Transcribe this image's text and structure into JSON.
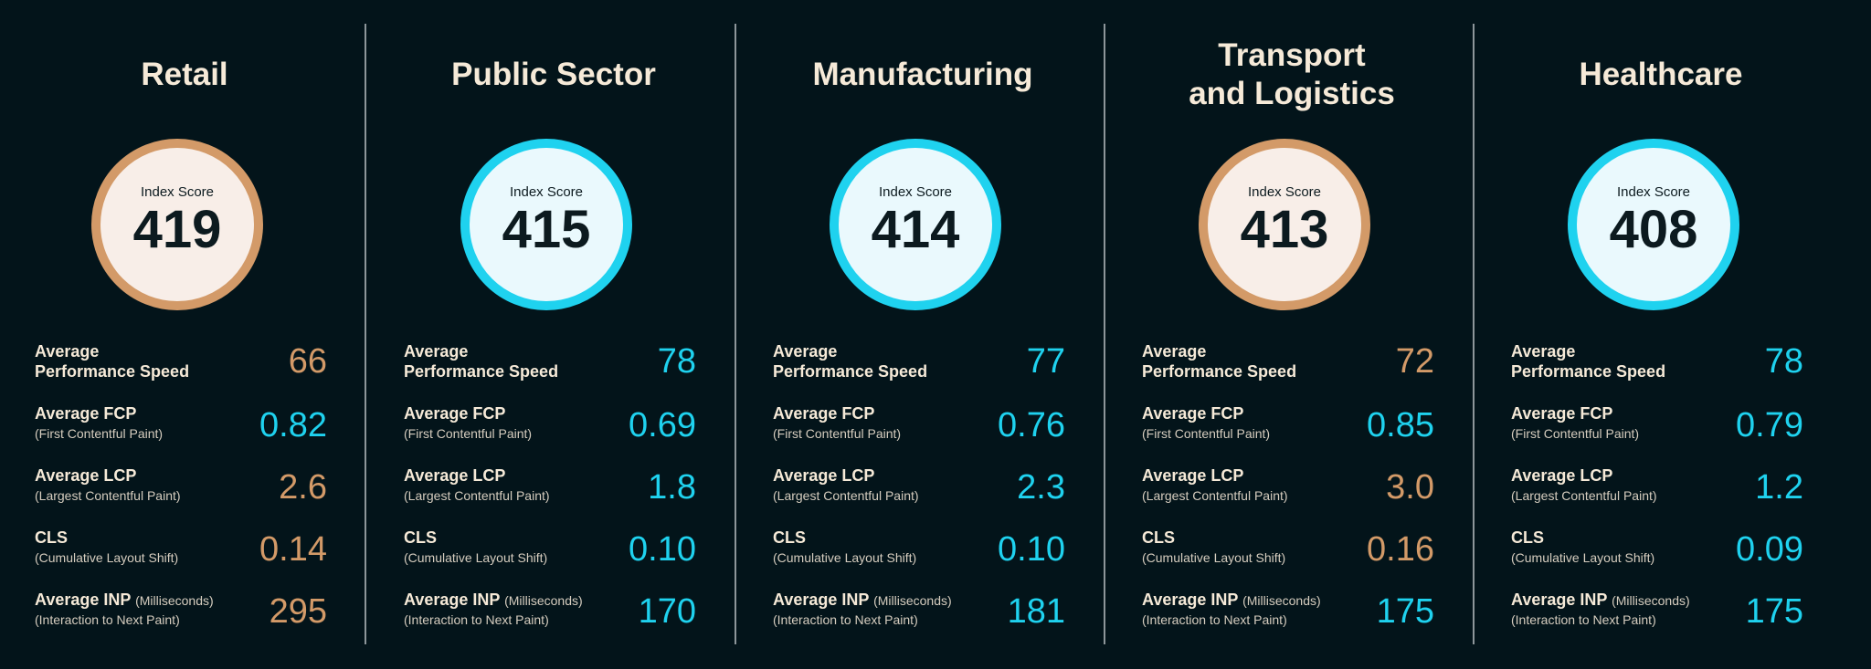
{
  "colors": {
    "background": "#03141a",
    "title": "#f6ead8",
    "accent_orange": "#d39a68",
    "accent_cyan": "#1fd2ef",
    "circle_fill_orange": "#f8eee8",
    "circle_fill_cyan": "#eaf9fd"
  },
  "labels": {
    "index_score": "Index Score",
    "avg_performance": "Average\nPerformance Speed",
    "avg_fcp": "Average FCP",
    "avg_fcp_sub": "(First Contentful Paint)",
    "avg_lcp": "Average LCP",
    "avg_lcp_sub": "(Largest Contentful Paint)",
    "cls": "CLS",
    "cls_sub": "(Cumulative Layout Shift)",
    "avg_inp": "Average INP",
    "avg_inp_suffix": "(Milliseconds)",
    "avg_inp_sub": "(Interaction to Next Paint)"
  },
  "panels": [
    {
      "title": "Retail",
      "score": "419",
      "ring": "orange",
      "metrics": [
        {
          "value": "66",
          "color": "orange"
        },
        {
          "value": "0.82",
          "color": "cyan"
        },
        {
          "value": "2.6",
          "color": "orange"
        },
        {
          "value": "0.14",
          "color": "orange"
        },
        {
          "value": "295",
          "color": "orange"
        }
      ]
    },
    {
      "title": "Public Sector",
      "score": "415",
      "ring": "cyan",
      "metrics": [
        {
          "value": "78",
          "color": "cyan"
        },
        {
          "value": "0.69",
          "color": "cyan"
        },
        {
          "value": "1.8",
          "color": "cyan"
        },
        {
          "value": "0.10",
          "color": "cyan"
        },
        {
          "value": "170",
          "color": "cyan"
        }
      ]
    },
    {
      "title": "Manufacturing",
      "score": "414",
      "ring": "cyan",
      "metrics": [
        {
          "value": "77",
          "color": "cyan"
        },
        {
          "value": "0.76",
          "color": "cyan"
        },
        {
          "value": "2.3",
          "color": "cyan"
        },
        {
          "value": "0.10",
          "color": "cyan"
        },
        {
          "value": "181",
          "color": "cyan"
        }
      ]
    },
    {
      "title": "Transport\nand Logistics",
      "score": "413",
      "ring": "orange",
      "metrics": [
        {
          "value": "72",
          "color": "orange"
        },
        {
          "value": "0.85",
          "color": "cyan"
        },
        {
          "value": "3.0",
          "color": "orange"
        },
        {
          "value": "0.16",
          "color": "orange"
        },
        {
          "value": "175",
          "color": "cyan"
        }
      ]
    },
    {
      "title": "Healthcare",
      "score": "408",
      "ring": "cyan",
      "metrics": [
        {
          "value": "78",
          "color": "cyan"
        },
        {
          "value": "0.79",
          "color": "cyan"
        },
        {
          "value": "1.2",
          "color": "cyan"
        },
        {
          "value": "0.09",
          "color": "cyan"
        },
        {
          "value": "175",
          "color": "cyan"
        }
      ]
    }
  ]
}
